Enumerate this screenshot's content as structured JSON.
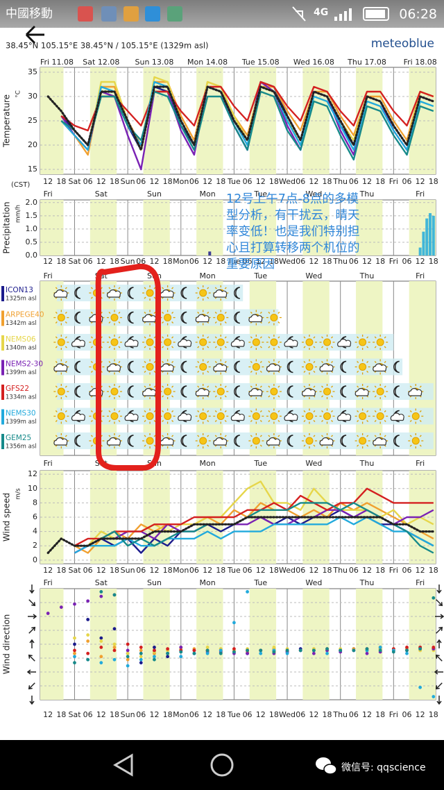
{
  "status_bar": {
    "carrier": "中國移動",
    "network": "4G",
    "time": "06:28"
  },
  "header": {
    "location": "38.45°N 105.15°E  38.45°N / 105.15°E (1329m asl)",
    "brand": "meteoblue"
  },
  "time_axis": {
    "xlim": [
      8.5,
      187
    ],
    "xticks": [
      12,
      18,
      {
        "value": 24,
        "label": "Sat"
      },
      {
        "value": 30,
        "label": "06"
      },
      {
        "value": 36,
        "label": "12"
      },
      {
        "value": 42,
        "label": "18"
      },
      {
        "value": 48,
        "label": "Sun"
      },
      {
        "value": 54,
        "label": "06"
      },
      {
        "value": 60,
        "label": "12"
      },
      {
        "value": 66,
        "label": "18"
      },
      {
        "value": 72,
        "label": "Mon"
      },
      {
        "value": 78,
        "label": "06"
      },
      {
        "value": 84,
        "label": "12"
      },
      {
        "value": 90,
        "label": "18"
      },
      {
        "value": 96,
        "label": "Tue"
      },
      {
        "value": 102,
        "label": "06"
      },
      {
        "value": 108,
        "label": "12"
      },
      {
        "value": 114,
        "label": "18"
      },
      {
        "value": 120,
        "label": "Wed"
      },
      {
        "value": 126,
        "label": "06"
      },
      {
        "value": 132,
        "label": "12"
      },
      {
        "value": 138,
        "label": "18"
      },
      {
        "value": 144,
        "label": "Thu"
      },
      {
        "value": 150,
        "label": "06"
      },
      {
        "value": 156,
        "label": "12"
      },
      {
        "value": 162,
        "label": "18"
      },
      {
        "value": 168,
        "label": "Fri"
      },
      {
        "value": 174,
        "label": "06"
      },
      {
        "value": 180,
        "label": "12"
      },
      {
        "value": 186,
        "label": "18"
      }
    ],
    "day_labels": [
      "Fri",
      "Sat",
      "Sun",
      "Mon",
      "Tue",
      "Wed",
      "Thu",
      "Fri"
    ],
    "date_labels": [
      "Fri 11.08",
      "Sat 12.08",
      "Sun 13.08",
      "Mon 14.08",
      "Tue 15.08",
      "Wed 16.08",
      "Thu 17.08",
      "Fri 18.08"
    ],
    "timezone": "(CST)"
  },
  "chart_data": [
    {
      "type": "line",
      "ylabel": "Temperature",
      "yunit": "°C",
      "ylim": [
        14,
        36
      ],
      "yticks": [
        15,
        20,
        25,
        30,
        35
      ],
      "x": [
        12,
        18,
        24,
        30,
        36,
        42,
        48,
        54,
        60,
        66,
        72,
        78,
        84,
        90,
        96,
        102,
        108,
        114,
        120,
        126,
        132,
        138,
        144,
        150,
        156,
        162,
        168,
        174,
        180,
        186
      ],
      "series": [
        {
          "name": "ICON13",
          "elevation": "1325m asl",
          "color": "#1c1c8c",
          "values": [
            null,
            26,
            23,
            20,
            31,
            30,
            24,
            19,
            32,
            31,
            24,
            20,
            32,
            31,
            26,
            21,
            33,
            32,
            26,
            21,
            31,
            30,
            24,
            20,
            30,
            29,
            24,
            20,
            30,
            29
          ]
        },
        {
          "name": "ARPEGE40",
          "elevation": "1342m asl",
          "color": "#f0a030",
          "values": [
            null,
            25,
            22,
            18,
            32,
            32,
            25,
            20,
            33,
            33,
            26,
            21,
            33,
            32,
            26,
            22,
            32,
            32,
            27,
            23,
            31,
            31,
            26,
            22,
            30,
            30,
            25,
            21,
            31,
            30
          ]
        },
        {
          "name": "NEMS06",
          "elevation": "1340m asl",
          "color": "#e6d64a",
          "values": [
            null,
            25,
            22,
            19,
            33,
            33,
            25,
            19,
            34,
            33,
            25,
            20,
            33,
            32,
            26,
            21,
            32,
            31,
            25,
            21,
            31,
            30,
            25,
            21,
            30,
            29,
            24,
            20,
            31,
            30
          ]
        },
        {
          "name": "NEMS2-30",
          "elevation": "1399m asl",
          "color": "#7a22b4",
          "values": [
            null,
            26,
            22,
            19,
            31,
            30,
            22,
            15,
            31,
            31,
            23,
            18,
            32,
            31,
            24,
            19,
            33,
            31,
            24,
            19,
            31,
            30,
            23,
            18,
            30,
            29,
            23,
            19,
            30,
            29
          ]
        },
        {
          "name": "GFS22",
          "elevation": "1334m asl",
          "color": "#d42020",
          "values": [
            null,
            26,
            24,
            23,
            30,
            30,
            27,
            24,
            31,
            31,
            27,
            24,
            32,
            32,
            28,
            25,
            33,
            32,
            28,
            25,
            32,
            31,
            27,
            24,
            31,
            31,
            27,
            24,
            31,
            30
          ]
        },
        {
          "name": "NEMS30",
          "elevation": "1399m asl",
          "color": "#22aadc",
          "values": [
            null,
            25,
            22,
            19,
            32,
            31,
            24,
            20,
            33,
            32,
            25,
            20,
            32,
            31,
            25,
            20,
            32,
            31,
            25,
            20,
            30,
            29,
            24,
            19,
            29,
            28,
            23,
            19,
            29,
            28
          ]
        },
        {
          "name": "GEM25",
          "elevation": "1356m asl",
          "color": "#178a8a",
          "values": [
            null,
            25,
            23,
            20,
            30,
            30,
            24,
            21,
            31,
            30,
            24,
            19,
            30,
            30,
            24,
            19,
            31,
            30,
            23,
            19,
            29,
            28,
            22,
            17,
            28,
            27,
            22,
            18,
            28,
            27
          ]
        },
        {
          "color": "#222222",
          "style": "dotted",
          "values": [
            30,
            27,
            23,
            20,
            31,
            31,
            25,
            19,
            32,
            32,
            25,
            20,
            32,
            31,
            25,
            21,
            32,
            31,
            26,
            21,
            31,
            30,
            25,
            20,
            30,
            29,
            24,
            20,
            30,
            29
          ]
        }
      ]
    },
    {
      "type": "bar",
      "ylabel": "Precipitation",
      "yunit": "mm/h",
      "ylim": [
        0,
        2.1
      ],
      "yticks": [
        {
          "value": 0,
          "label": "0.0"
        },
        {
          "value": 0.5,
          "label": "0.5"
        },
        {
          "value": 1,
          "label": "1.0"
        },
        {
          "value": 1.5,
          "label": "1.5"
        },
        {
          "value": 2,
          "label": "2.0"
        }
      ],
      "series": [
        {
          "color": "#1c1c8c",
          "x": [
            85
          ],
          "values": [
            0.15
          ]
        },
        {
          "color": "#22aadc",
          "x": [
            180,
            181.5,
            183,
            184.5,
            186
          ],
          "values": [
            0.3,
            0.9,
            1.4,
            1.6,
            1.5
          ]
        }
      ]
    },
    {
      "type": "line",
      "ylabel": "Wind speed",
      "yunit": "m/s",
      "ylim": [
        -0.5,
        12.5
      ],
      "yticks": [
        0,
        2,
        4,
        6,
        8,
        10,
        12
      ],
      "x": [
        12,
        18,
        24,
        30,
        36,
        42,
        48,
        54,
        60,
        66,
        72,
        78,
        84,
        90,
        96,
        102,
        108,
        114,
        120,
        126,
        132,
        138,
        144,
        150,
        156,
        162,
        168,
        174,
        180,
        186
      ],
      "series": [
        {
          "color": "#1c1c8c",
          "values": [
            null,
            null,
            1,
            2,
            3,
            2,
            3,
            1,
            3,
            2,
            4,
            4,
            5,
            4,
            5,
            6,
            6,
            5,
            6,
            5,
            6,
            6,
            7,
            6,
            6,
            5,
            5,
            4,
            3,
            2
          ]
        },
        {
          "color": "#f0a030",
          "values": [
            null,
            null,
            2,
            1,
            3,
            4,
            3,
            5,
            4,
            5,
            5,
            5,
            6,
            5,
            7,
            6,
            8,
            7,
            7,
            6,
            7,
            6,
            8,
            7,
            8,
            7,
            6,
            5,
            4,
            3
          ]
        },
        {
          "color": "#e6d64a",
          "values": [
            null,
            null,
            2,
            2,
            4,
            3,
            4,
            4,
            5,
            4,
            5,
            5,
            6,
            6,
            8,
            10,
            11,
            8,
            8,
            7,
            10,
            8,
            7,
            7,
            7,
            6,
            7,
            5,
            6,
            5
          ]
        },
        {
          "color": "#7a22b4",
          "values": [
            null,
            null,
            1,
            2,
            3,
            3,
            4,
            4,
            3,
            5,
            4,
            5,
            5,
            5,
            5,
            5,
            6,
            5,
            5,
            6,
            6,
            7,
            7,
            6,
            7,
            6,
            5,
            6,
            6,
            7
          ]
        },
        {
          "color": "#d42020",
          "values": [
            null,
            null,
            2,
            3,
            3,
            4,
            4,
            4,
            5,
            5,
            5,
            6,
            6,
            6,
            6,
            7,
            7,
            8,
            7,
            9,
            8,
            7,
            8,
            8,
            10,
            9,
            8,
            8,
            8,
            8
          ]
        },
        {
          "color": "#22aadc",
          "values": [
            null,
            null,
            1,
            2,
            2,
            2,
            3,
            2,
            2,
            3,
            3,
            3,
            4,
            3,
            4,
            4,
            4,
            5,
            5,
            5,
            5,
            5,
            6,
            5,
            6,
            5,
            4,
            4,
            3,
            2
          ]
        },
        {
          "color": "#178a8a",
          "values": [
            null,
            null,
            2,
            2,
            3,
            4,
            2,
            3,
            2,
            3,
            4,
            4,
            5,
            5,
            5,
            6,
            7,
            7,
            7,
            8,
            8,
            8,
            7,
            8,
            7,
            6,
            5,
            4,
            2,
            1
          ]
        },
        {
          "color": "#222222",
          "style": "dotted",
          "values": [
            1,
            3,
            2,
            2,
            3,
            3,
            3,
            3,
            4,
            4,
            4,
            5,
            5,
            5,
            5,
            6,
            6,
            6,
            6,
            6,
            6,
            6,
            6,
            6,
            6,
            6,
            5,
            5,
            4,
            4
          ]
        }
      ]
    },
    {
      "type": "scatter",
      "ylabel": "Wind direction",
      "ylim": [
        0,
        360
      ],
      "yticks": [
        0,
        45,
        90,
        135,
        180,
        225,
        270,
        315,
        360
      ],
      "x": [
        12,
        18,
        24,
        30,
        36,
        42,
        48,
        54,
        60,
        66,
        72,
        78,
        84,
        90,
        96,
        102,
        108,
        114,
        120,
        126,
        132,
        138,
        144,
        150,
        156,
        162,
        168,
        174,
        180,
        186
      ],
      "series": [
        {
          "color": "#1c1c8c",
          "values": [
            null,
            null,
            180,
            260,
            200,
            230,
            150,
            120,
            170,
            140,
            160,
            150,
            160,
            160,
            155,
            150,
            160,
            160,
            155,
            165,
            160,
            160,
            160,
            165,
            160,
            165,
            160,
            165,
            170,
            165
          ]
        },
        {
          "color": "#f0a030",
          "values": [
            null,
            null,
            150,
            190,
            140,
            170,
            130,
            160,
            150,
            160,
            170,
            165,
            160,
            165,
            160,
            155,
            160,
            165,
            160,
            160,
            165,
            160,
            160,
            165,
            160,
            160,
            165,
            160,
            160,
            165
          ]
        },
        {
          "color": "#e6d64a",
          "values": [
            null,
            null,
            200,
            210,
            190,
            180,
            150,
            140,
            155,
            160,
            165,
            160,
            170,
            165,
            160,
            165,
            160,
            170,
            165,
            160,
            165,
            160,
            165,
            160,
            160,
            165,
            160,
            165,
            160,
            160
          ]
        },
        {
          "color": "#7a22b4",
          "values": [
            280,
            300,
            310,
            320,
            335,
            340,
            160,
            150,
            160,
            150,
            170,
            160,
            155,
            155,
            150,
            150,
            160,
            150,
            155,
            160,
            150,
            160,
            155,
            160,
            150,
            155,
            160,
            160,
            165,
            165
          ]
        },
        {
          "color": "#d42020",
          "values": [
            null,
            null,
            160,
            150,
            170,
            160,
            180,
            170,
            160,
            165,
            160,
            160,
            160,
            160,
            165,
            160,
            160,
            155,
            160,
            160,
            160,
            165,
            160,
            160,
            165,
            170,
            165,
            170,
            170,
            170
          ]
        },
        {
          "color": "#22aadc",
          "values": [
            null,
            null,
            140,
            130,
            120,
            130,
            110,
            130,
            140,
            150,
            140,
            150,
            150,
            160,
            250,
            350,
            150,
            160,
            150,
            160,
            160,
            150,
            160,
            160,
            160,
            170,
            160,
            150,
            40,
            10
          ]
        },
        {
          "color": "#178a8a",
          "values": [
            null,
            null,
            120,
            130,
            350,
            340,
            140,
            150,
            130,
            150,
            155,
            150,
            160,
            150,
            155,
            160,
            160,
            155,
            160,
            160,
            160,
            165,
            160,
            160,
            165,
            160,
            155,
            160,
            165,
            330
          ]
        }
      ]
    }
  ],
  "annotation": {
    "lines": [
      "12号上午7点-8点的多模",
      "型分析，有干扰云，晴天",
      "率变低！也是我们特别担",
      "心且打算转移两个机位的",
      "重要原因"
    ]
  },
  "nav_bar": {
    "wechat": "微信号: qqscience"
  }
}
